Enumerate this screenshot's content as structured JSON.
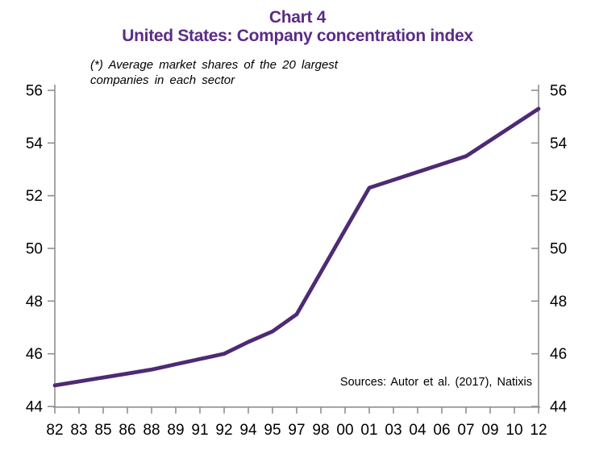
{
  "colors": {
    "title": "#5B2C86",
    "line": "#4E2A74",
    "axis": "#8F8F8F",
    "labels": "#000000"
  },
  "chart_data": {
    "type": "line",
    "title": "Chart 4",
    "subtitle": "United States: Company concentration index",
    "annotation_lines": [
      "(*) Average market shares of the 20 largest",
      "companies in each sector"
    ],
    "source": "Sources: Autor et al. (2017), Natixis",
    "categories": [
      "82",
      "83",
      "85",
      "86",
      "88",
      "89",
      "91",
      "92",
      "94",
      "95",
      "97",
      "98",
      "00",
      "01",
      "03",
      "04",
      "06",
      "07",
      "09",
      "10",
      "12"
    ],
    "values": [
      44.8,
      44.95,
      45.1,
      45.25,
      45.4,
      45.6,
      45.8,
      46.0,
      46.45,
      46.85,
      47.5,
      49.1,
      50.7,
      52.3,
      52.6,
      52.9,
      53.2,
      53.5,
      54.1,
      54.7,
      55.3
    ],
    "ylim": [
      44,
      56
    ],
    "yticks": [
      44,
      46,
      48,
      50,
      52,
      54,
      56
    ],
    "y_axis_sides": [
      "left",
      "right"
    ],
    "xlabel": "",
    "ylabel": "",
    "grid": false,
    "legend": "none",
    "line_color": "#4E2A74"
  }
}
